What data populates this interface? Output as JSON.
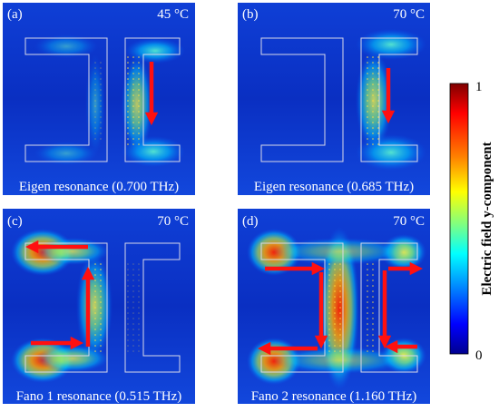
{
  "panels": [
    {
      "label": "(a)",
      "temperature": "45 °C",
      "caption": "Eigen resonance (0.700 THz)"
    },
    {
      "label": "(b)",
      "temperature": "70 °C",
      "caption": "Eigen resonance (0.685 THz)"
    },
    {
      "label": "(c)",
      "temperature": "70 °C",
      "caption": "Fano 1 resonance (0.515 THz)"
    },
    {
      "label": "(d)",
      "temperature": "70 °C",
      "caption": "Fano 2 resonance (1.160 THz)"
    }
  ],
  "colorbar": {
    "title": "Electric field y-component",
    "max_label": "1",
    "min_label": "0",
    "colors": [
      "#7f0000",
      "#ff0000",
      "#ff8000",
      "#ffff00",
      "#80ff80",
      "#00ffff",
      "#0080ff",
      "#0000ff",
      "#00008f"
    ]
  }
}
